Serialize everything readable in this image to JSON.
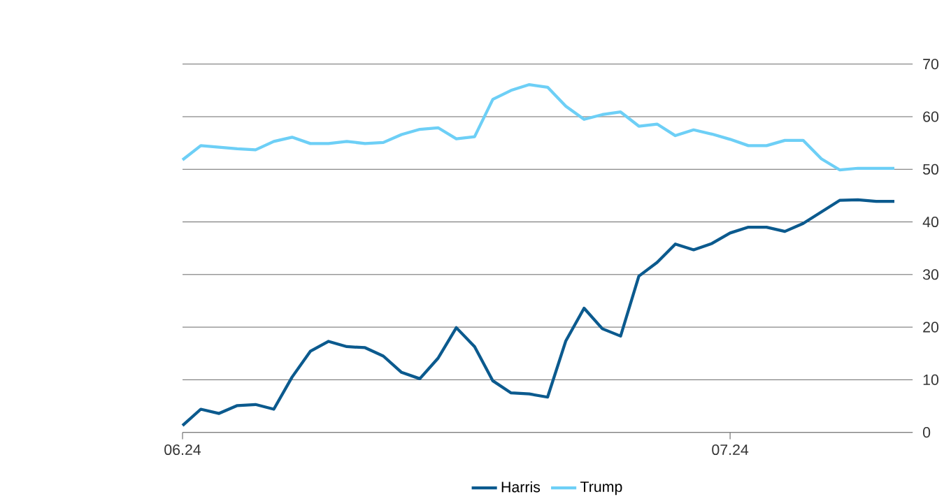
{
  "chart_data": {
    "type": "line",
    "x": [
      "2024-06-01",
      "2024-06-02",
      "2024-06-03",
      "2024-06-04",
      "2024-06-05",
      "2024-06-06",
      "2024-06-07",
      "2024-06-08",
      "2024-06-09",
      "2024-06-10",
      "2024-06-11",
      "2024-06-12",
      "2024-06-13",
      "2024-06-14",
      "2024-06-15",
      "2024-06-16",
      "2024-06-17",
      "2024-06-18",
      "2024-06-19",
      "2024-06-20",
      "2024-06-21",
      "2024-06-22",
      "2024-06-23",
      "2024-06-24",
      "2024-06-25",
      "2024-06-26",
      "2024-06-27",
      "2024-06-28",
      "2024-06-29",
      "2024-06-30",
      "2024-07-01",
      "2024-07-02",
      "2024-07-03",
      "2024-07-04",
      "2024-07-05",
      "2024-07-06",
      "2024-07-07",
      "2024-07-08",
      "2024-07-09",
      "2024-07-10"
    ],
    "series": [
      {
        "name": "Harris",
        "color": "#0b5a8e",
        "values": [
          1.3,
          4.4,
          3.6,
          5.1,
          5.3,
          4.4,
          10.5,
          15.4,
          17.3,
          16.3,
          16.1,
          14.5,
          11.4,
          10.2,
          14.1,
          19.9,
          16.3,
          9.8,
          7.5,
          7.3,
          6.7,
          17.4,
          23.6,
          19.7,
          18.3,
          29.7,
          32.3,
          35.8,
          34.7,
          35.9,
          37.9,
          39.0,
          39.0,
          38.2,
          39.7,
          41.9,
          44.1,
          44.2,
          43.9,
          43.9
        ]
      },
      {
        "name": "Trump",
        "color": "#6dcff6",
        "values": [
          51.8,
          54.5,
          54.2,
          53.9,
          53.7,
          55.3,
          56.1,
          54.9,
          54.9,
          55.3,
          54.9,
          55.1,
          56.6,
          57.6,
          57.9,
          55.8,
          56.2,
          63.3,
          65.0,
          66.1,
          65.6,
          62.0,
          59.5,
          60.4,
          60.9,
          58.2,
          58.6,
          56.4,
          57.5,
          56.7,
          55.7,
          54.5,
          54.5,
          55.5,
          55.5,
          52.0,
          49.9,
          50.2,
          50.2,
          50.2
        ]
      }
    ],
    "xlim": [
      "2024-06-01",
      "2024-07-11"
    ],
    "xticks": [
      {
        "value": "2024-06-01",
        "label": "06.24"
      },
      {
        "value": "2024-07-01",
        "label": "07.24"
      }
    ],
    "ylim": [
      0,
      70
    ],
    "yticks": [
      0,
      10,
      20,
      30,
      40,
      50,
      60,
      70
    ],
    "grid": "y",
    "legend": "bottom",
    "marker": "none",
    "line_style": "solid"
  }
}
